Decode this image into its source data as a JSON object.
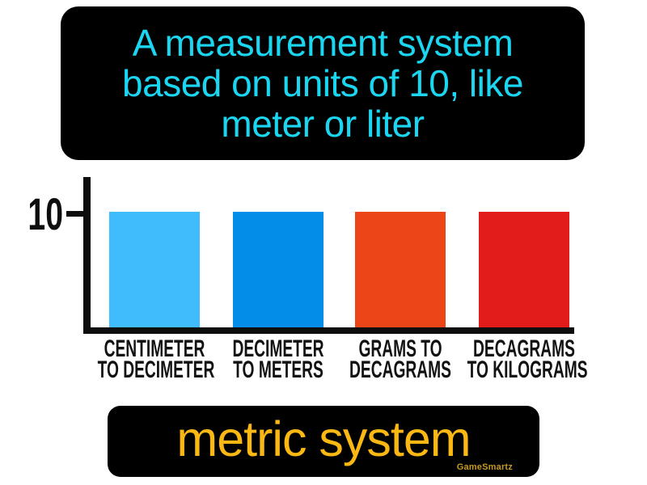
{
  "definition_box": {
    "bg_color": "#000000",
    "text_color": "#1BD6F1",
    "lines": [
      "A measurement system",
      "based on units of 10, like",
      "meter or liter"
    ]
  },
  "term_box": {
    "bg_color": "#000000",
    "text_color": "#FBB813",
    "term": "metric system",
    "watermark": "GameSmartz",
    "watermark_color": "#C7991B"
  },
  "chart_data": {
    "type": "bar",
    "title": "",
    "xlabel": "",
    "ylabel": "",
    "categories": [
      "CENTIMETER TO DECIMETER",
      "DECIMETER TO METERS",
      "GRAMS TO DECAGRAMS",
      "DECAGRAMS TO KILOGRAMS"
    ],
    "values": [
      10,
      10,
      10,
      10
    ],
    "ylim": [
      0,
      13.5
    ],
    "y_ticks": [
      "10"
    ],
    "grid": false,
    "legend": false,
    "axis_color": "#0D0D0D",
    "bars": [
      {
        "label_line1": "CENTIMETER",
        "label_line2": "TO DECIMETER",
        "value": 10,
        "color": "#3FBCFC"
      },
      {
        "label_line1": "DECIMETER",
        "label_line2": "TO METERS",
        "value": 10,
        "color": "#048DE8"
      },
      {
        "label_line1": "GRAMS TO",
        "label_line2": "DECAGRAMS",
        "value": 10,
        "color": "#EC4517"
      },
      {
        "label_line1": "DECAGRAMS",
        "label_line2": "TO KILOGRAMS",
        "value": 10,
        "color": "#E21B1B"
      }
    ],
    "y_axis_tick_label": "10"
  }
}
